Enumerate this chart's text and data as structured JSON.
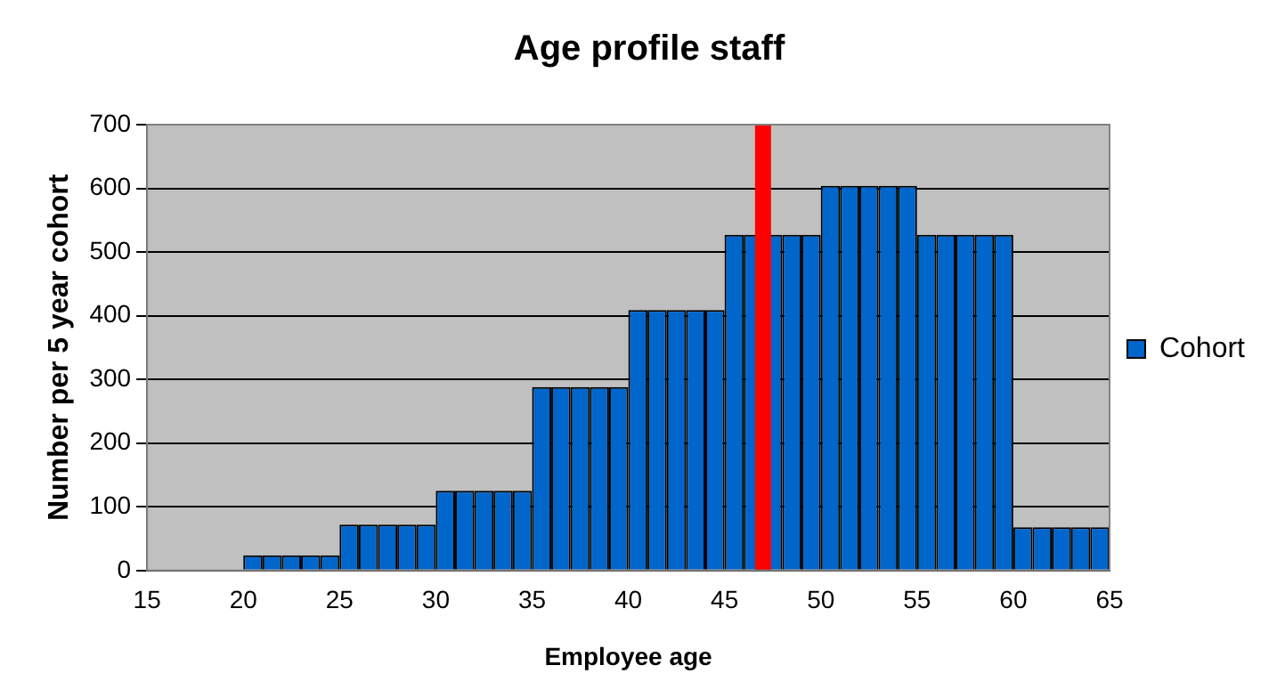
{
  "chart_data": {
    "type": "histogram",
    "title": "Age profile staff",
    "xlabel": "Employee age",
    "ylabel": "Number per 5 year cohort",
    "bins": [
      15,
      16,
      17,
      18,
      19,
      20,
      21,
      22,
      23,
      24,
      25,
      26,
      27,
      28,
      29,
      30,
      31,
      32,
      33,
      34,
      35,
      36,
      37,
      38,
      39,
      40,
      41,
      42,
      43,
      44,
      45,
      46,
      47,
      48,
      49,
      50,
      51,
      52,
      53,
      54,
      55,
      56,
      57,
      58,
      59,
      60,
      61,
      62,
      63,
      64,
      65
    ],
    "series": [
      {
        "name": "Cohort",
        "color": "#0066cc",
        "values": [
          0,
          0,
          0,
          0,
          0,
          24,
          24,
          24,
          24,
          24,
          72,
          72,
          72,
          72,
          72,
          125,
          125,
          125,
          125,
          125,
          288,
          288,
          288,
          288,
          288,
          409,
          409,
          409,
          409,
          409,
          527,
          527,
          527,
          527,
          527,
          604,
          604,
          604,
          604,
          604,
          527,
          527,
          527,
          527,
          527,
          68,
          68,
          68,
          68,
          68
        ]
      }
    ],
    "xlim": [
      15,
      65
    ],
    "xticks": [
      15,
      20,
      25,
      30,
      35,
      40,
      45,
      50,
      55,
      60,
      65
    ],
    "ylim": [
      0,
      700
    ],
    "yticks": [
      0,
      100,
      200,
      300,
      400,
      500,
      600,
      700
    ],
    "ref_lines": [
      {
        "axis": "x",
        "value": 47,
        "color": "#ff0000"
      }
    ],
    "grid": "y",
    "legend": "right"
  }
}
